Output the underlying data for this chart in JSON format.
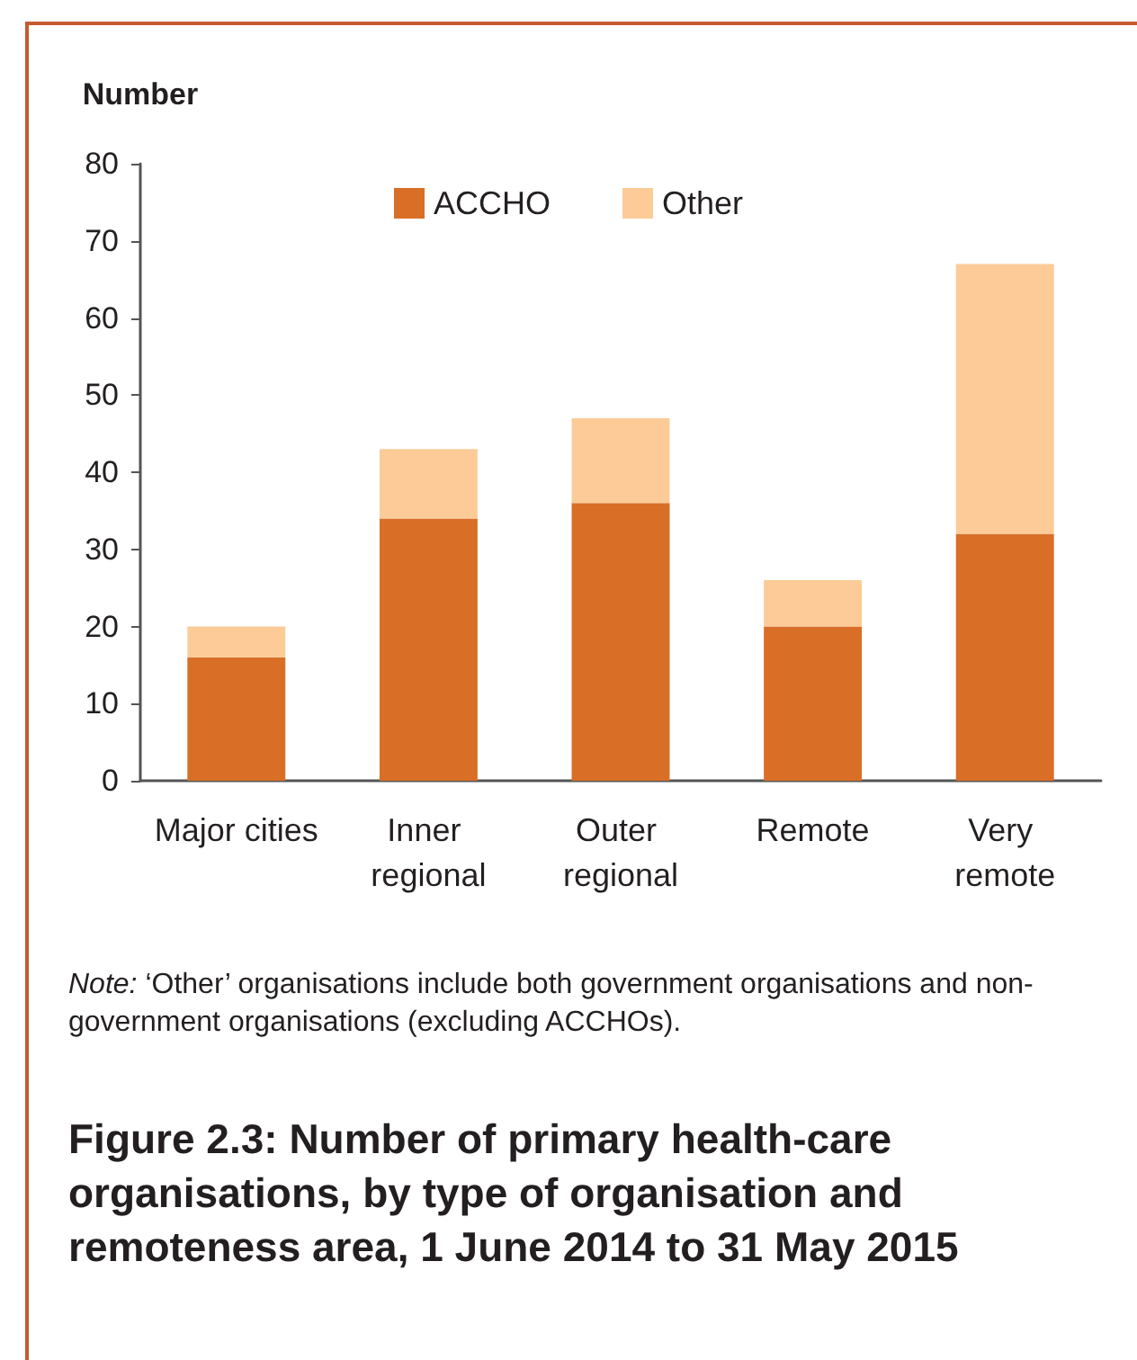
{
  "chart_data": {
    "type": "bar",
    "stacked": true,
    "title": "Figure 2.3: Number of primary health-care organisations, by type of organisation and remoteness area, 1 June 2014 to 31 May 2015",
    "ylabel": "Number",
    "annotations": [
      "Note: ‘Other’ organisations include both government organisations and non-government organisations (excluding ACCHOs)."
    ],
    "categories": [
      "Major cities",
      "Inner regional",
      "Outer regional",
      "Remote",
      "Very remote"
    ],
    "series": [
      {
        "name": "ACCHO",
        "color": "#d96e27",
        "values": [
          16,
          34,
          36,
          20,
          32
        ]
      },
      {
        "name": "Other",
        "color": "#fccb97",
        "values": [
          4,
          9,
          11,
          6,
          35
        ]
      }
    ],
    "ylim": [
      0,
      80
    ],
    "yticks": [
      0,
      10,
      20,
      30,
      40,
      50,
      60,
      70,
      80
    ],
    "grid": false,
    "legend": "top"
  }
}
